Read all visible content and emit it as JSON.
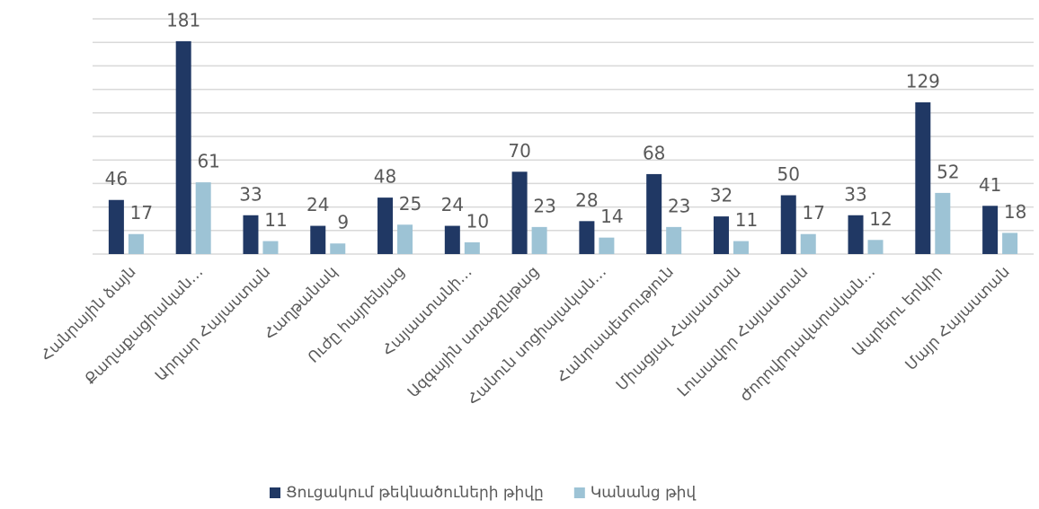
{
  "chart_data": {
    "type": "bar",
    "categories": [
      "Հանրային ձայն",
      "Քաղաքացիական…",
      "Արդար Հայաստան",
      "Հաղթանակ",
      "Ուժը հայրենյաց",
      "Հայաստանի…",
      "Ազգային առաջընթաց",
      "Հանուն սոցիալական…",
      "Հանրապետություն",
      "Միացյալ Հայաստան",
      "Լուսավոր Հայաստան",
      "Ժողովրդավարական…",
      "Ապրելու երկիր",
      "Մայր Հայաստան"
    ],
    "series": [
      {
        "name": "Ցուցակում թեկնածուների թիվը",
        "color": "#203864",
        "values": [
          46,
          181,
          33,
          24,
          48,
          24,
          70,
          28,
          68,
          32,
          50,
          33,
          129,
          41
        ]
      },
      {
        "name": "Կանանց թիվ",
        "color": "#9dc3d5",
        "values": [
          17,
          61,
          11,
          9,
          25,
          10,
          23,
          14,
          23,
          11,
          17,
          12,
          52,
          18
        ]
      }
    ],
    "ylim": [
      0,
      200
    ],
    "yticks": [
      0,
      20,
      40,
      60,
      80,
      100,
      120,
      140,
      160,
      180,
      200
    ],
    "grid": true,
    "legend": "bottom"
  }
}
